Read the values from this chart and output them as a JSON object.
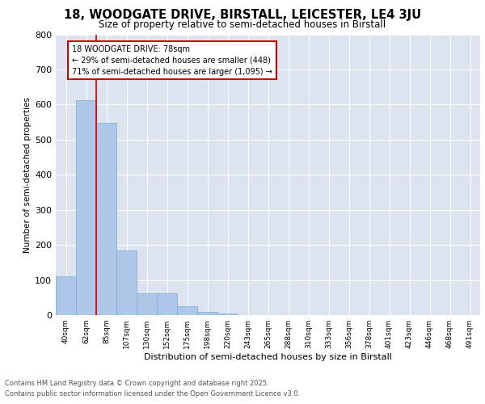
{
  "title1": "18, WOODGATE DRIVE, BIRSTALL, LEICESTER, LE4 3JU",
  "title2": "Size of property relative to semi-detached houses in Birstall",
  "xlabel": "Distribution of semi-detached houses by size in Birstall",
  "ylabel": "Number of semi-detached properties",
  "categories": [
    "40sqm",
    "62sqm",
    "85sqm",
    "107sqm",
    "130sqm",
    "152sqm",
    "175sqm",
    "198sqm",
    "220sqm",
    "243sqm",
    "265sqm",
    "288sqm",
    "310sqm",
    "333sqm",
    "356sqm",
    "378sqm",
    "401sqm",
    "423sqm",
    "446sqm",
    "468sqm",
    "491sqm"
  ],
  "values": [
    110,
    612,
    548,
    185,
    62,
    62,
    25,
    10,
    5,
    0,
    0,
    0,
    0,
    0,
    0,
    0,
    0,
    0,
    0,
    0,
    0
  ],
  "bar_color": "#aec6e8",
  "bar_edge_color": "#7aadd4",
  "background_color": "#dde4f0",
  "annotation_text": "18 WOODGATE DRIVE: 78sqm\n← 29% of semi-detached houses are smaller (448)\n71% of semi-detached houses are larger (1,095) →",
  "annotation_box_color": "#ffffff",
  "annotation_box_edge": "#cc0000",
  "vline_x": 1.5,
  "vline_color": "#cc0000",
  "ylim": [
    0,
    800
  ],
  "yticks": [
    0,
    100,
    200,
    300,
    400,
    500,
    600,
    700,
    800
  ],
  "footer1": "Contains HM Land Registry data © Crown copyright and database right 2025.",
  "footer2": "Contains public sector information licensed under the Open Government Licence v3.0."
}
